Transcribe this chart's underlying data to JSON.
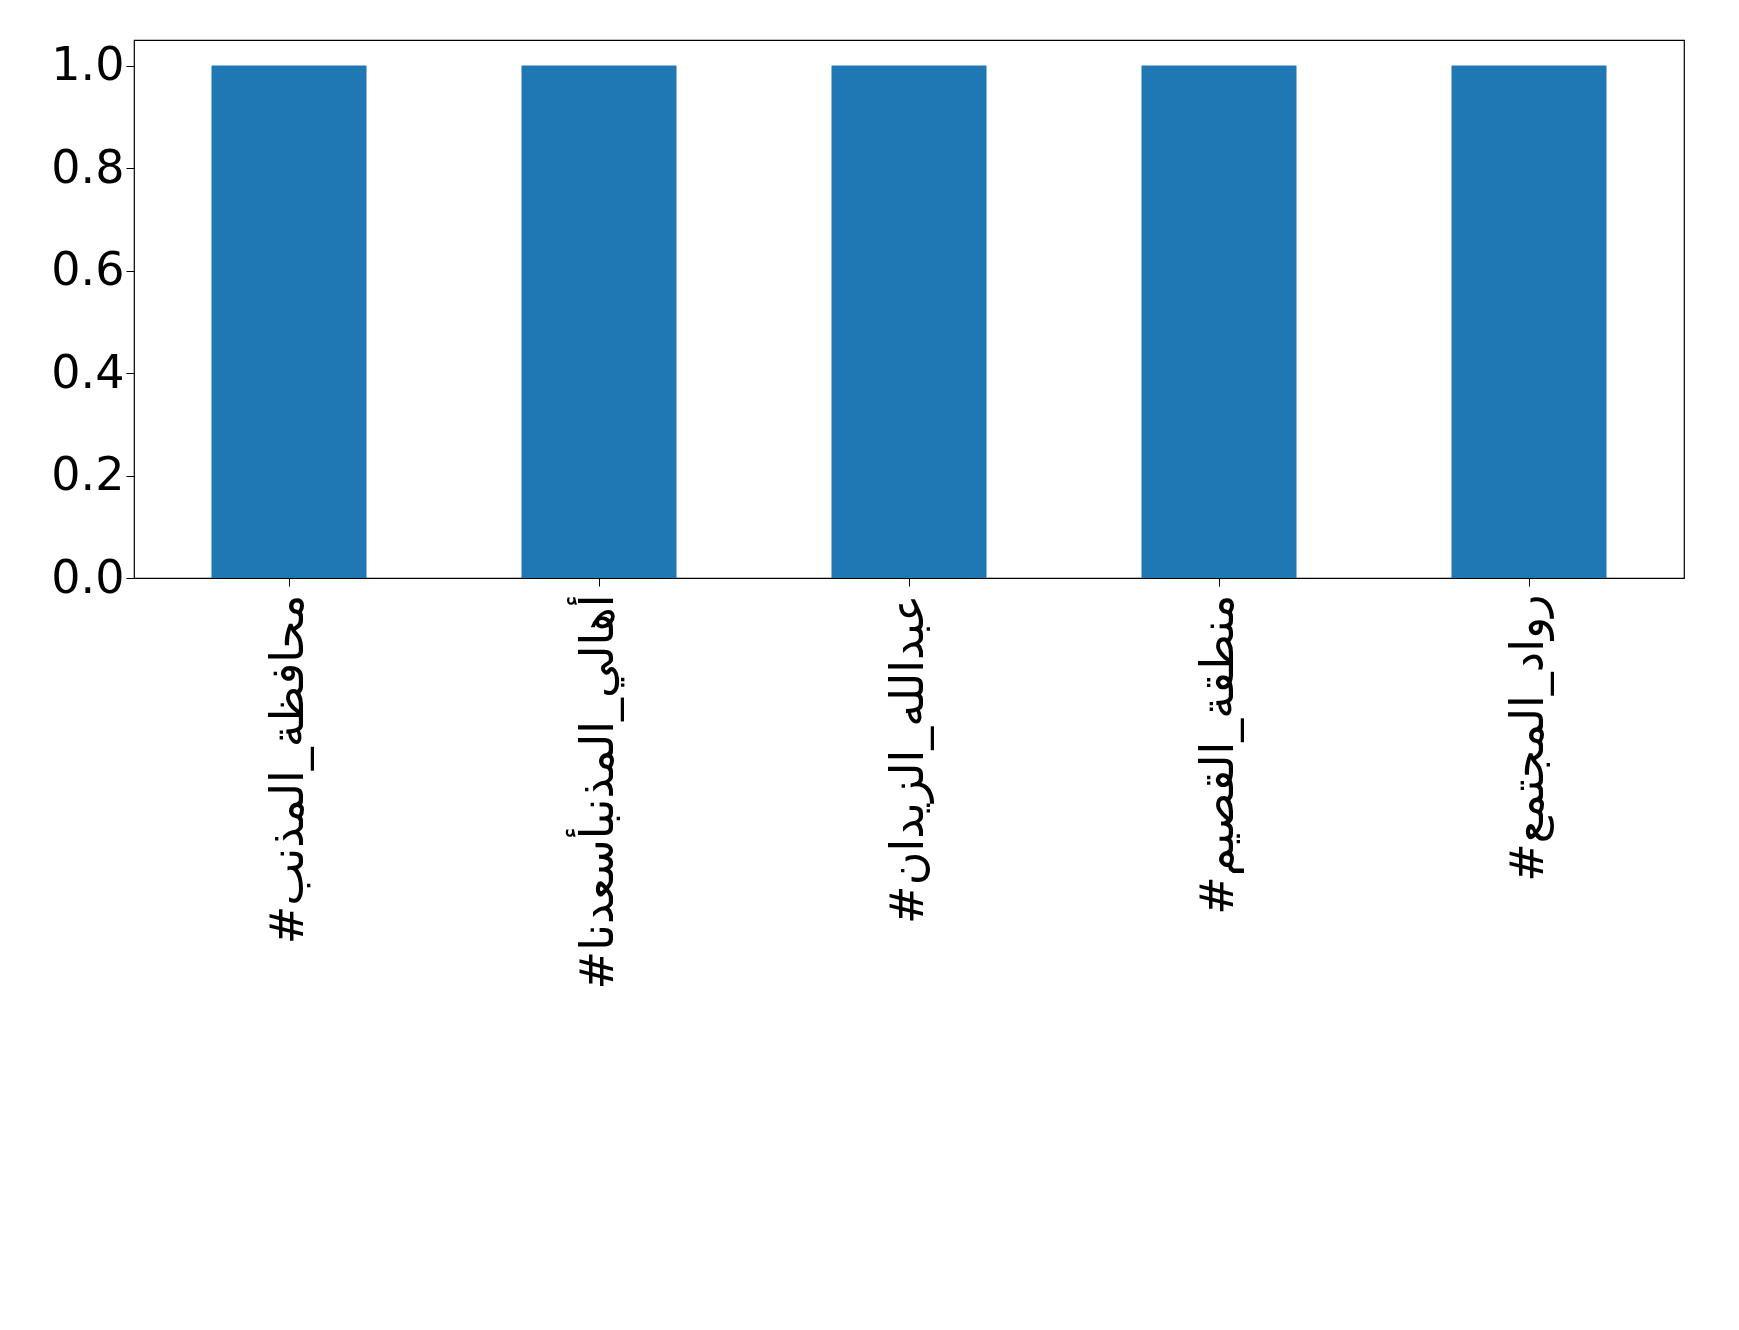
{
  "chart_data": {
    "type": "bar",
    "categories": [
      "#محافظة_المذنب",
      "#أهالي_المذنبأسعدنا",
      "#عبدالله_الزيدان",
      "#منطقة_القصيم",
      "#رواد_المجتمع"
    ],
    "values": [
      1.0,
      1.0,
      1.0,
      1.0,
      1.0
    ],
    "color": "#1f77b4",
    "ylim": [
      0,
      1.05
    ],
    "yticks": [
      {
        "value": 0,
        "label": "0.0"
      },
      0.2,
      0.4,
      0.6,
      0.8,
      {
        "value": 1,
        "label": "1.0"
      }
    ],
    "grid": false
  }
}
